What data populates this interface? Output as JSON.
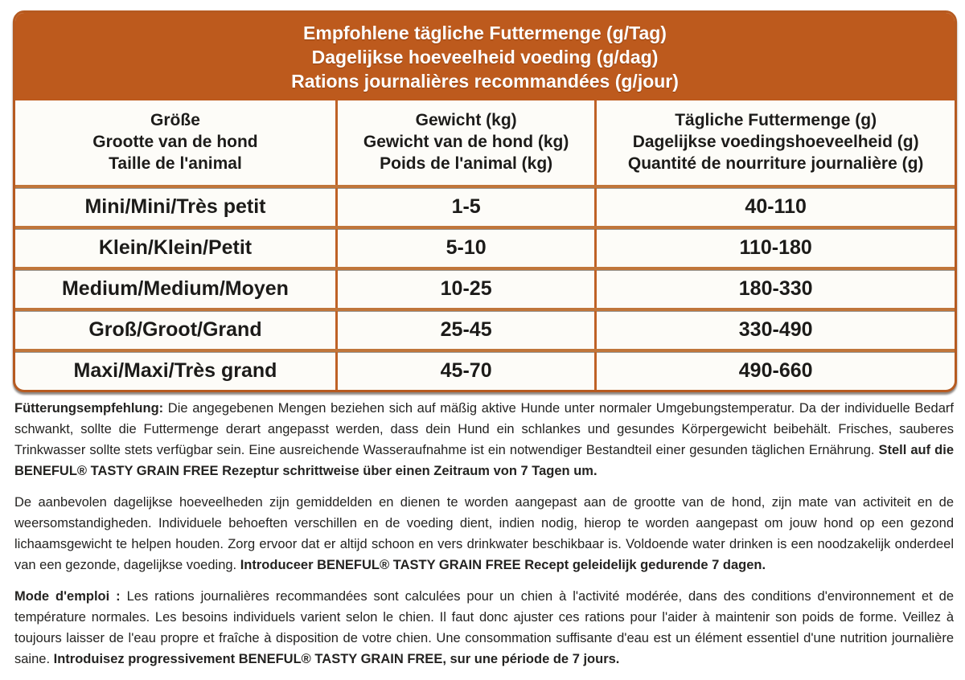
{
  "banner": {
    "line_de": "Empfohlene tägliche Futtermenge (g/Tag)",
    "line_nl": "Dagelijkse hoeveelheid voeding (g/dag)",
    "line_fr": "Rations journalières recommandées (g/jour)"
  },
  "table": {
    "columns": [
      {
        "lines": [
          "Größe",
          "Grootte van de hond",
          "Taille de l'animal"
        ]
      },
      {
        "lines": [
          "Gewicht (kg)",
          "Gewicht van de hond (kg)",
          "Poids de l'animal (kg)"
        ]
      },
      {
        "lines": [
          "Tägliche Futtermenge (g)",
          "Dagelijkse voedingshoeveelheid (g)",
          "Quantité de nourriture journalière (g)"
        ]
      }
    ],
    "rows": [
      {
        "size": "Mini/Mini/Très petit",
        "weight_kg": "1-5",
        "daily_amount_g": "40-110"
      },
      {
        "size": "Klein/Klein/Petit",
        "weight_kg": "5-10",
        "daily_amount_g": "110-180"
      },
      {
        "size": "Medium/Medium/Moyen",
        "weight_kg": "10-25",
        "daily_amount_g": "180-330"
      },
      {
        "size": "Groß/Groot/Grand",
        "weight_kg": "25-45",
        "daily_amount_g": "330-490"
      },
      {
        "size": "Maxi/Maxi/Très grand",
        "weight_kg": "45-70",
        "daily_amount_g": "490-660"
      }
    ]
  },
  "notes": [
    {
      "lang": "de",
      "lead": "Fütterungsempfehlung:",
      "body": " Die angegebenen Mengen beziehen sich auf mäßig aktive Hunde unter normaler Umgebungstemperatur. Da der individuelle Bedarf schwankt, sollte die Futtermenge derart angepasst werden, dass dein Hund ein schlankes und gesundes Körpergewicht beibehält. Frisches, sauberes Trinkwasser sollte stets verfügbar sein. Eine ausreichende Wasseraufnahme ist ein notwendiger Bestandteil einer gesunden täglichen Ernährung. ",
      "emphasis": "Stell auf die BENEFUL® TASTY GRAIN FREE Rezeptur schrittweise über einen Zeitraum von 7 Tagen um."
    },
    {
      "lang": "nl",
      "lead": "",
      "body": "De aanbevolen dagelijkse hoeveelheden zijn gemiddelden en dienen te worden aangepast aan de grootte van de hond, zijn mate van activiteit en de weersomstandigheden. Individuele behoeften verschillen en de voeding dient, indien nodig, hierop te worden aangepast om jouw hond op een gezond lichaamsgewicht te helpen houden. Zorg ervoor dat er altijd schoon en vers drinkwater beschikbaar is. Voldoende water drinken is een noodzakelijk onderdeel van een gezonde, dagelijkse voeding. ",
      "emphasis": "Introduceer BENEFUL® TASTY GRAIN FREE Recept geleidelijk gedurende 7 dagen."
    },
    {
      "lang": "fr",
      "lead": "Mode d'emploi :",
      "body": " Les rations journalières recommandées sont calculées pour un chien à l'activité modérée, dans des conditions d'environnement et de température normales. Les besoins individuels varient selon le chien. Il faut donc ajuster ces rations pour l'aider à maintenir son poids de forme. Veillez à toujours laisser de l'eau propre et fraîche à disposition de votre chien. Une consommation suffisante d'eau est un élément essentiel d'une nutrition journalière saine. ",
      "emphasis": "Introduisez progressivement BENEFUL® TASTY GRAIN FREE, sur une période de 7 jours."
    }
  ],
  "colors": {
    "banner_orange": "#bd5a1d",
    "border_orange": "#b65a20",
    "column_divider": "#bf6226",
    "row_divider": "#c0763b",
    "text": "#1d1c1a"
  }
}
